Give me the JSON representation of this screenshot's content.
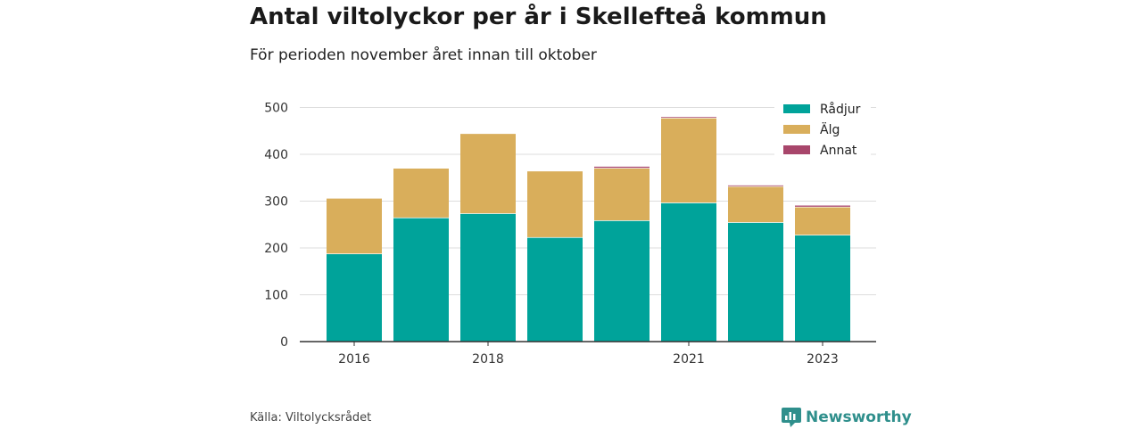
{
  "header": {
    "title": "Antal viltolyckor per år i Skellefteå kommun",
    "subtitle": "För perioden november året innan till oktober"
  },
  "footer": {
    "source": "Källa: Viltolycksrådet",
    "brand": "Newsworthy",
    "brand_icon": "newsworthy-logo-icon",
    "brand_color": "#2f8f8c"
  },
  "chart_data": {
    "type": "bar",
    "stacked": true,
    "categories": [
      "2016",
      "2017",
      "2018",
      "2019",
      "2020",
      "2021",
      "2022",
      "2023"
    ],
    "x_tick_labels": [
      "2016",
      "",
      "2018",
      "",
      "",
      "2021",
      "",
      "2023"
    ],
    "series": [
      {
        "name": "Rådjur",
        "color": "#00a39a",
        "values": [
          188,
          265,
          274,
          223,
          259,
          297,
          255,
          228
        ]
      },
      {
        "name": "Älg",
        "color": "#d9ae5b",
        "values": [
          119,
          106,
          171,
          142,
          112,
          181,
          77,
          60
        ]
      },
      {
        "name": "Annat",
        "color": "#a8466b",
        "values": [
          0,
          0,
          0,
          0,
          4,
          3,
          3,
          4
        ]
      }
    ],
    "yticks": [
      0,
      100,
      200,
      300,
      400,
      500
    ],
    "ylim": [
      0,
      520
    ],
    "grid": true,
    "legend_position": "top-right"
  }
}
